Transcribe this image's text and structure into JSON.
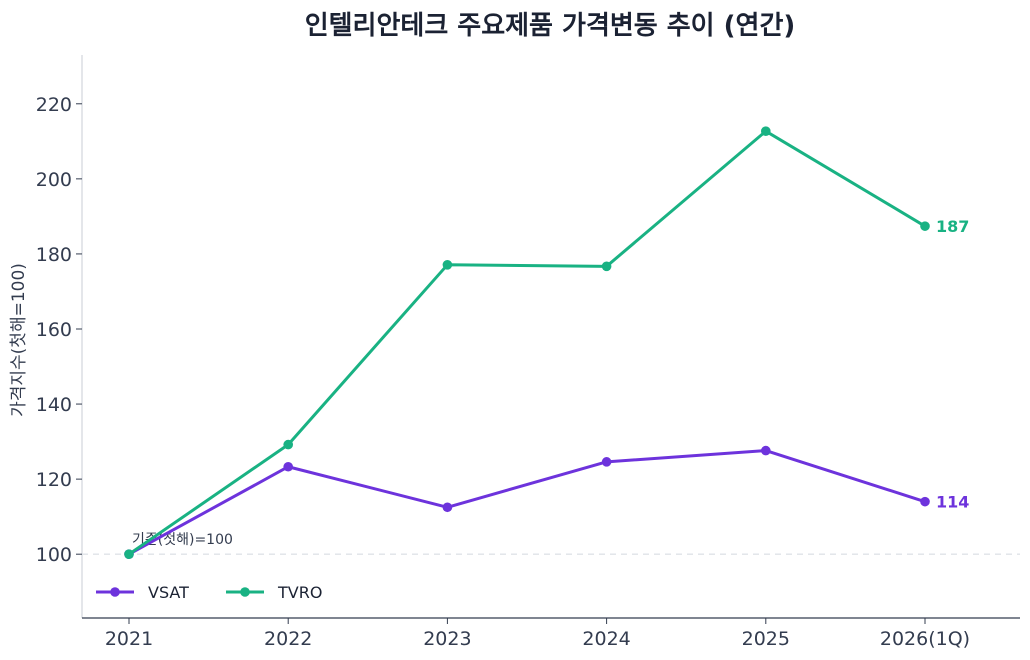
{
  "chart_data": {
    "type": "line",
    "title": "인텔리안테크 주요제품 가격변동 추이 (연간)",
    "xlabel": "",
    "ylabel": "가격지수(첫해=100)",
    "categories": [
      "2021",
      "2022",
      "2023",
      "2024",
      "2025",
      "2026(1Q)"
    ],
    "ylim": [
      83,
      233
    ],
    "yticks": [
      100,
      120,
      140,
      160,
      180,
      200,
      220
    ],
    "grid": false,
    "legend_position": "bottom-left",
    "series": [
      {
        "name": "VSAT",
        "color": "#6d33dc",
        "values": [
          100,
          123.3,
          112.5,
          124.6,
          127.6,
          114
        ],
        "end_label": "114"
      },
      {
        "name": "TVRO",
        "color": "#19b283",
        "values": [
          100,
          129.2,
          177.1,
          176.7,
          212.7,
          187.4
        ],
        "end_label": "187"
      }
    ],
    "reference_line": {
      "value": 100,
      "label": "기준(첫해)=100",
      "color": "#dfe3e8"
    }
  }
}
